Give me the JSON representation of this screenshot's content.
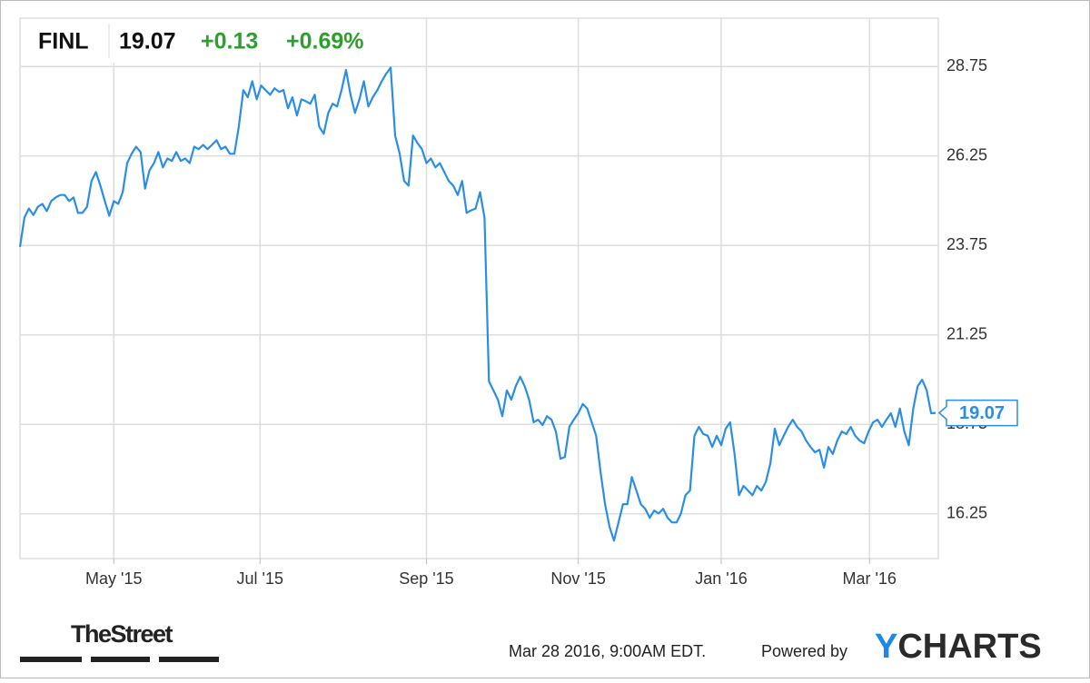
{
  "quote": {
    "symbol": "FINL",
    "price": "19.07",
    "change": "+0.13",
    "change_percent": "+0.69%"
  },
  "chart_data": {
    "type": "line",
    "series": [
      {
        "name": "FINL",
        "color": "#2b8ee6",
        "values": [
          23.71,
          24.53,
          24.78,
          24.6,
          24.83,
          24.91,
          24.71,
          24.99,
          25.09,
          25.16,
          25.16,
          24.99,
          25.09,
          24.66,
          24.66,
          24.83,
          25.55,
          25.8,
          25.42,
          24.99,
          24.58,
          24.99,
          24.91,
          25.24,
          26.05,
          26.31,
          26.51,
          26.36,
          25.34,
          25.85,
          26.05,
          26.36,
          25.93,
          26.18,
          26.11,
          26.36,
          26.11,
          26.18,
          26.05,
          26.51,
          26.44,
          26.56,
          26.44,
          26.56,
          26.69,
          26.44,
          26.51,
          26.31,
          26.31,
          27.07,
          28.09,
          27.89,
          28.34,
          27.83,
          28.22,
          28.09,
          27.96,
          28.14,
          28.04,
          28.09,
          27.58,
          27.89,
          27.38,
          27.83,
          27.78,
          27.71,
          27.96,
          27.07,
          26.87,
          27.45,
          27.71,
          27.63,
          28.09,
          28.65,
          27.96,
          27.45,
          27.83,
          28.34,
          27.63,
          27.89,
          28.09,
          28.34,
          28.55,
          28.72,
          26.82,
          26.31,
          25.55,
          25.42,
          26.82,
          26.61,
          26.44,
          26.05,
          26.18,
          25.93,
          26.05,
          25.8,
          25.55,
          25.42,
          25.16,
          25.55,
          24.66,
          24.73,
          24.78,
          25.24,
          24.53,
          19.95,
          19.7,
          19.44,
          18.98,
          19.7,
          19.44,
          19.82,
          20.08,
          19.82,
          19.44,
          18.81,
          18.88,
          18.73,
          18.98,
          18.88,
          18.55,
          17.79,
          17.84,
          18.68,
          18.88,
          19.06,
          19.32,
          19.19,
          18.81,
          18.43,
          17.41,
          16.52,
          15.88,
          15.5,
          16.01,
          16.52,
          16.52,
          17.28,
          16.9,
          16.52,
          16.39,
          16.14,
          16.34,
          16.26,
          16.39,
          16.14,
          16.01,
          16.01,
          16.26,
          16.77,
          16.9,
          18.43,
          18.68,
          18.48,
          18.43,
          18.12,
          18.43,
          18.17,
          18.63,
          18.81,
          17.92,
          16.77,
          17.03,
          16.9,
          16.77,
          17.03,
          16.9,
          17.15,
          17.66,
          18.63,
          18.17,
          18.43,
          18.68,
          18.88,
          18.68,
          18.55,
          18.3,
          18.12,
          17.97,
          18.04,
          17.54,
          18.12,
          17.92,
          18.3,
          18.55,
          18.48,
          18.68,
          18.43,
          18.3,
          18.22,
          18.55,
          18.81,
          18.88,
          18.68,
          18.88,
          19.06,
          18.68,
          19.19,
          18.55,
          18.17,
          19.19,
          19.82,
          20.0,
          19.7,
          19.06,
          19.07
        ]
      }
    ],
    "xlim": [
      0,
      205
    ],
    "xticks": [
      {
        "value": 21,
        "label": "May '15"
      },
      {
        "value": 53.75,
        "label": "Jul '15"
      },
      {
        "value": 91,
        "label": "Sep '15"
      },
      {
        "value": 125,
        "label": "Nov '15"
      },
      {
        "value": 157,
        "label": "Jan '16"
      },
      {
        "value": 190.2,
        "label": "Mar '16"
      }
    ],
    "ylim": [
      15,
      30.1
    ],
    "yticks": [
      16.25,
      18.75,
      21.25,
      23.75,
      26.25,
      28.75
    ],
    "grid": true
  },
  "footer": {
    "brand": "TheStreet",
    "timestamp": "Mar 28 2016, 9:00AM EDT.",
    "powered_by": "Powered by",
    "logo_y": "Y",
    "logo_rest": "CHARTS"
  }
}
